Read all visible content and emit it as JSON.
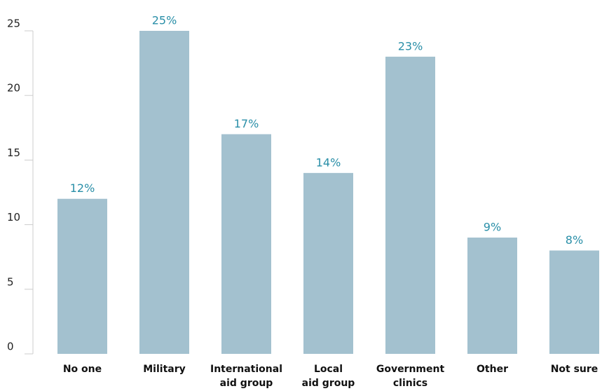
{
  "chart_data": {
    "type": "bar",
    "categories": [
      "No one",
      "Military",
      "International\naid group",
      "Local\naid group",
      "Government\nclinics",
      "Other",
      "Not sure"
    ],
    "values": [
      12,
      25,
      17,
      14,
      23,
      9,
      8
    ],
    "value_labels": [
      "12%",
      "25%",
      "17%",
      "14%",
      "23%",
      "9%",
      "8%"
    ],
    "color": "#a3c1cf",
    "ylim": [
      0,
      25
    ],
    "yticks": [
      0,
      5,
      10,
      15,
      20,
      25
    ],
    "grid": false
  }
}
